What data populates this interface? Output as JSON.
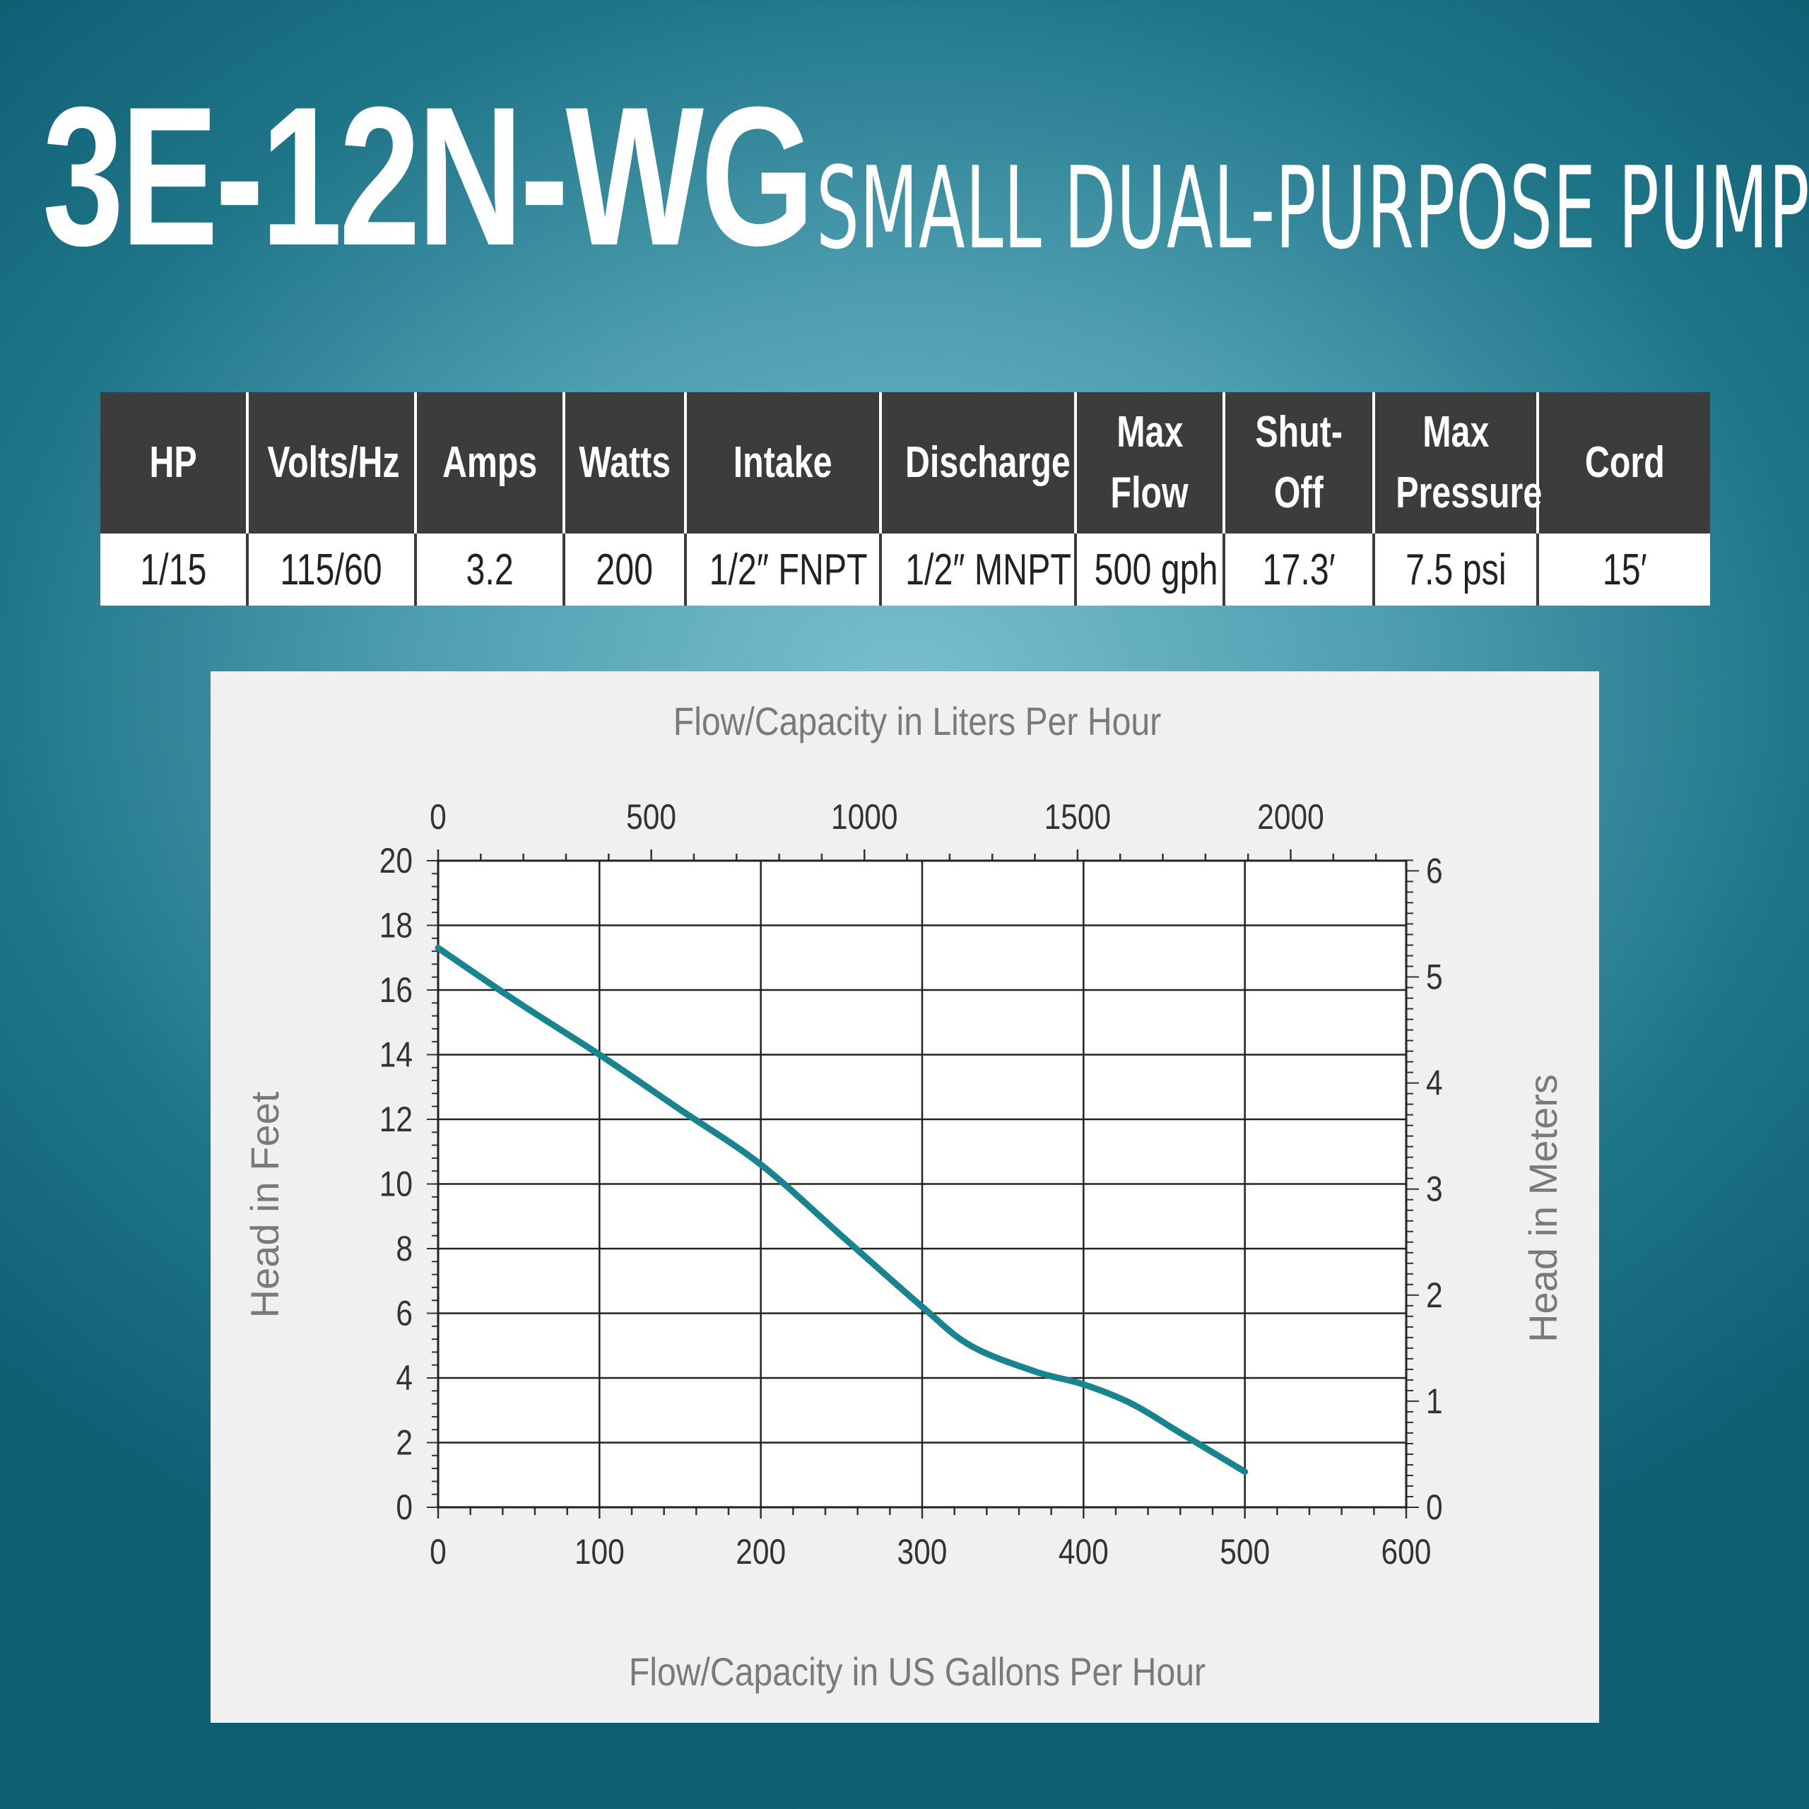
{
  "header": {
    "model": "3E-12N-WG",
    "subtitle": "SMALL DUAL-PURPOSE PUMP"
  },
  "specs": {
    "columns": [
      {
        "lines": [
          "HP"
        ]
      },
      {
        "lines": [
          "Volts/Hz"
        ]
      },
      {
        "lines": [
          "Amps"
        ]
      },
      {
        "lines": [
          "Watts"
        ]
      },
      {
        "lines": [
          "Intake"
        ]
      },
      {
        "lines": [
          "Discharge"
        ]
      },
      {
        "lines": [
          "Max",
          "Flow"
        ]
      },
      {
        "lines": [
          "Shut-",
          "Off"
        ]
      },
      {
        "lines": [
          "Max",
          "Pressure"
        ]
      },
      {
        "lines": [
          "Cord"
        ]
      }
    ],
    "values": [
      "1/15",
      "115/60",
      "3.2",
      "200",
      "1/2″ FNPT",
      "1/2″ MNPT",
      "500 gph",
      "17.3′",
      "7.5 psi",
      "15′"
    ]
  },
  "colors": {
    "curve": "#17848f",
    "grid": "#222222"
  },
  "chart_data": {
    "type": "line",
    "title_top": "Flow/Capacity in Liters Per Hour",
    "xlabel": "Flow/Capacity in US Gallons Per Hour",
    "ylabel_left": "Head in Feet",
    "ylabel_right": "Head in Meters",
    "xlim": [
      0,
      600
    ],
    "ylim": [
      0,
      20
    ],
    "x_ticks": [
      0,
      100,
      200,
      300,
      400,
      500,
      600
    ],
    "y_ticks": [
      0,
      2,
      4,
      6,
      8,
      10,
      12,
      14,
      16,
      18,
      20
    ],
    "top_axis": {
      "unit": "L/h",
      "ticks": [
        0,
        500,
        1000,
        1500,
        2000
      ],
      "gal_per_unit": 0.2642
    },
    "right_axis": {
      "unit": "m",
      "ticks": [
        0,
        1,
        2,
        3,
        4,
        5,
        6
      ],
      "ft_per_unit": 3.2808
    },
    "series": [
      {
        "name": "3E-12N-WG",
        "x": [
          0,
          50,
          100,
          150,
          200,
          250,
          300,
          330,
          370,
          400,
          430,
          460,
          500
        ],
        "y": [
          17.3,
          15.6,
          14.0,
          12.3,
          10.6,
          8.4,
          6.2,
          5.0,
          4.2,
          3.8,
          3.2,
          2.3,
          1.1
        ]
      }
    ]
  }
}
